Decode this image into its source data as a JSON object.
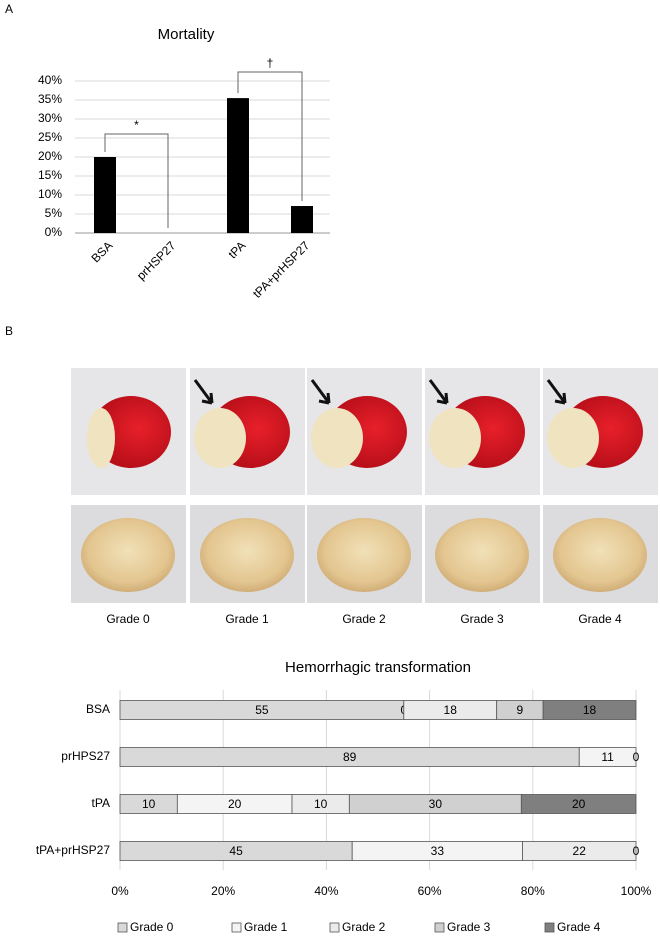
{
  "panel_labels": [
    "A",
    "B"
  ],
  "photo_captions": [
    "Grade 0",
    "Grade 1",
    "Grade 2",
    "Grade 3",
    "Grade 4"
  ],
  "chart_data": [
    {
      "type": "bar",
      "title": "Mortality",
      "categories": [
        "BSA",
        "prHSP27",
        "tPA",
        "tPA+prHSP27"
      ],
      "values": [
        20,
        0,
        35.5,
        7.1
      ],
      "color": "#000000",
      "ylim": [
        0,
        40
      ],
      "yticks": [
        {
          "value": 0,
          "label": "0%"
        },
        {
          "value": 5,
          "label": "5%"
        },
        {
          "value": 10,
          "label": "10%"
        },
        {
          "value": 15,
          "label": "15%"
        },
        {
          "value": 20,
          "label": "20%"
        },
        {
          "value": 25,
          "label": "25%"
        },
        {
          "value": 30,
          "label": "30%"
        },
        {
          "value": 35,
          "label": "35%"
        },
        {
          "value": 40,
          "label": "40%"
        }
      ],
      "grid": true,
      "annotations": [
        "*",
        "†"
      ]
    },
    {
      "type": "stacked_barh",
      "stacking": "percent",
      "title": "Hemorrhagic transformation",
      "categories": [
        "BSA",
        "prHPS27",
        "tPA",
        "tPA+prHSP27"
      ],
      "series": [
        {
          "name": "Grade 0",
          "color": "#d9d9d9",
          "values": [
            55,
            89,
            10,
            45
          ]
        },
        {
          "name": "Grade 1",
          "color": "#f4f4f4",
          "values": [
            0,
            11,
            20,
            33
          ]
        },
        {
          "name": "Grade 2",
          "color": "#ebebeb",
          "values": [
            18,
            0,
            10,
            22
          ]
        },
        {
          "name": "Grade 3",
          "color": "#d0d0d0",
          "values": [
            9,
            null,
            30,
            0
          ]
        },
        {
          "name": "Grade 4",
          "color": "#7f7f7f",
          "values": [
            18,
            null,
            20,
            null
          ]
        }
      ],
      "xlim": [
        0,
        100
      ],
      "xticks": [
        {
          "value": 0,
          "label": "0%"
        },
        {
          "value": 20,
          "label": "20%"
        },
        {
          "value": 40,
          "label": "40%"
        },
        {
          "value": 60,
          "label": "60%"
        },
        {
          "value": 80,
          "label": "80%"
        },
        {
          "value": 100,
          "label": "100%"
        }
      ],
      "grid": true,
      "legend": "bottom"
    }
  ]
}
